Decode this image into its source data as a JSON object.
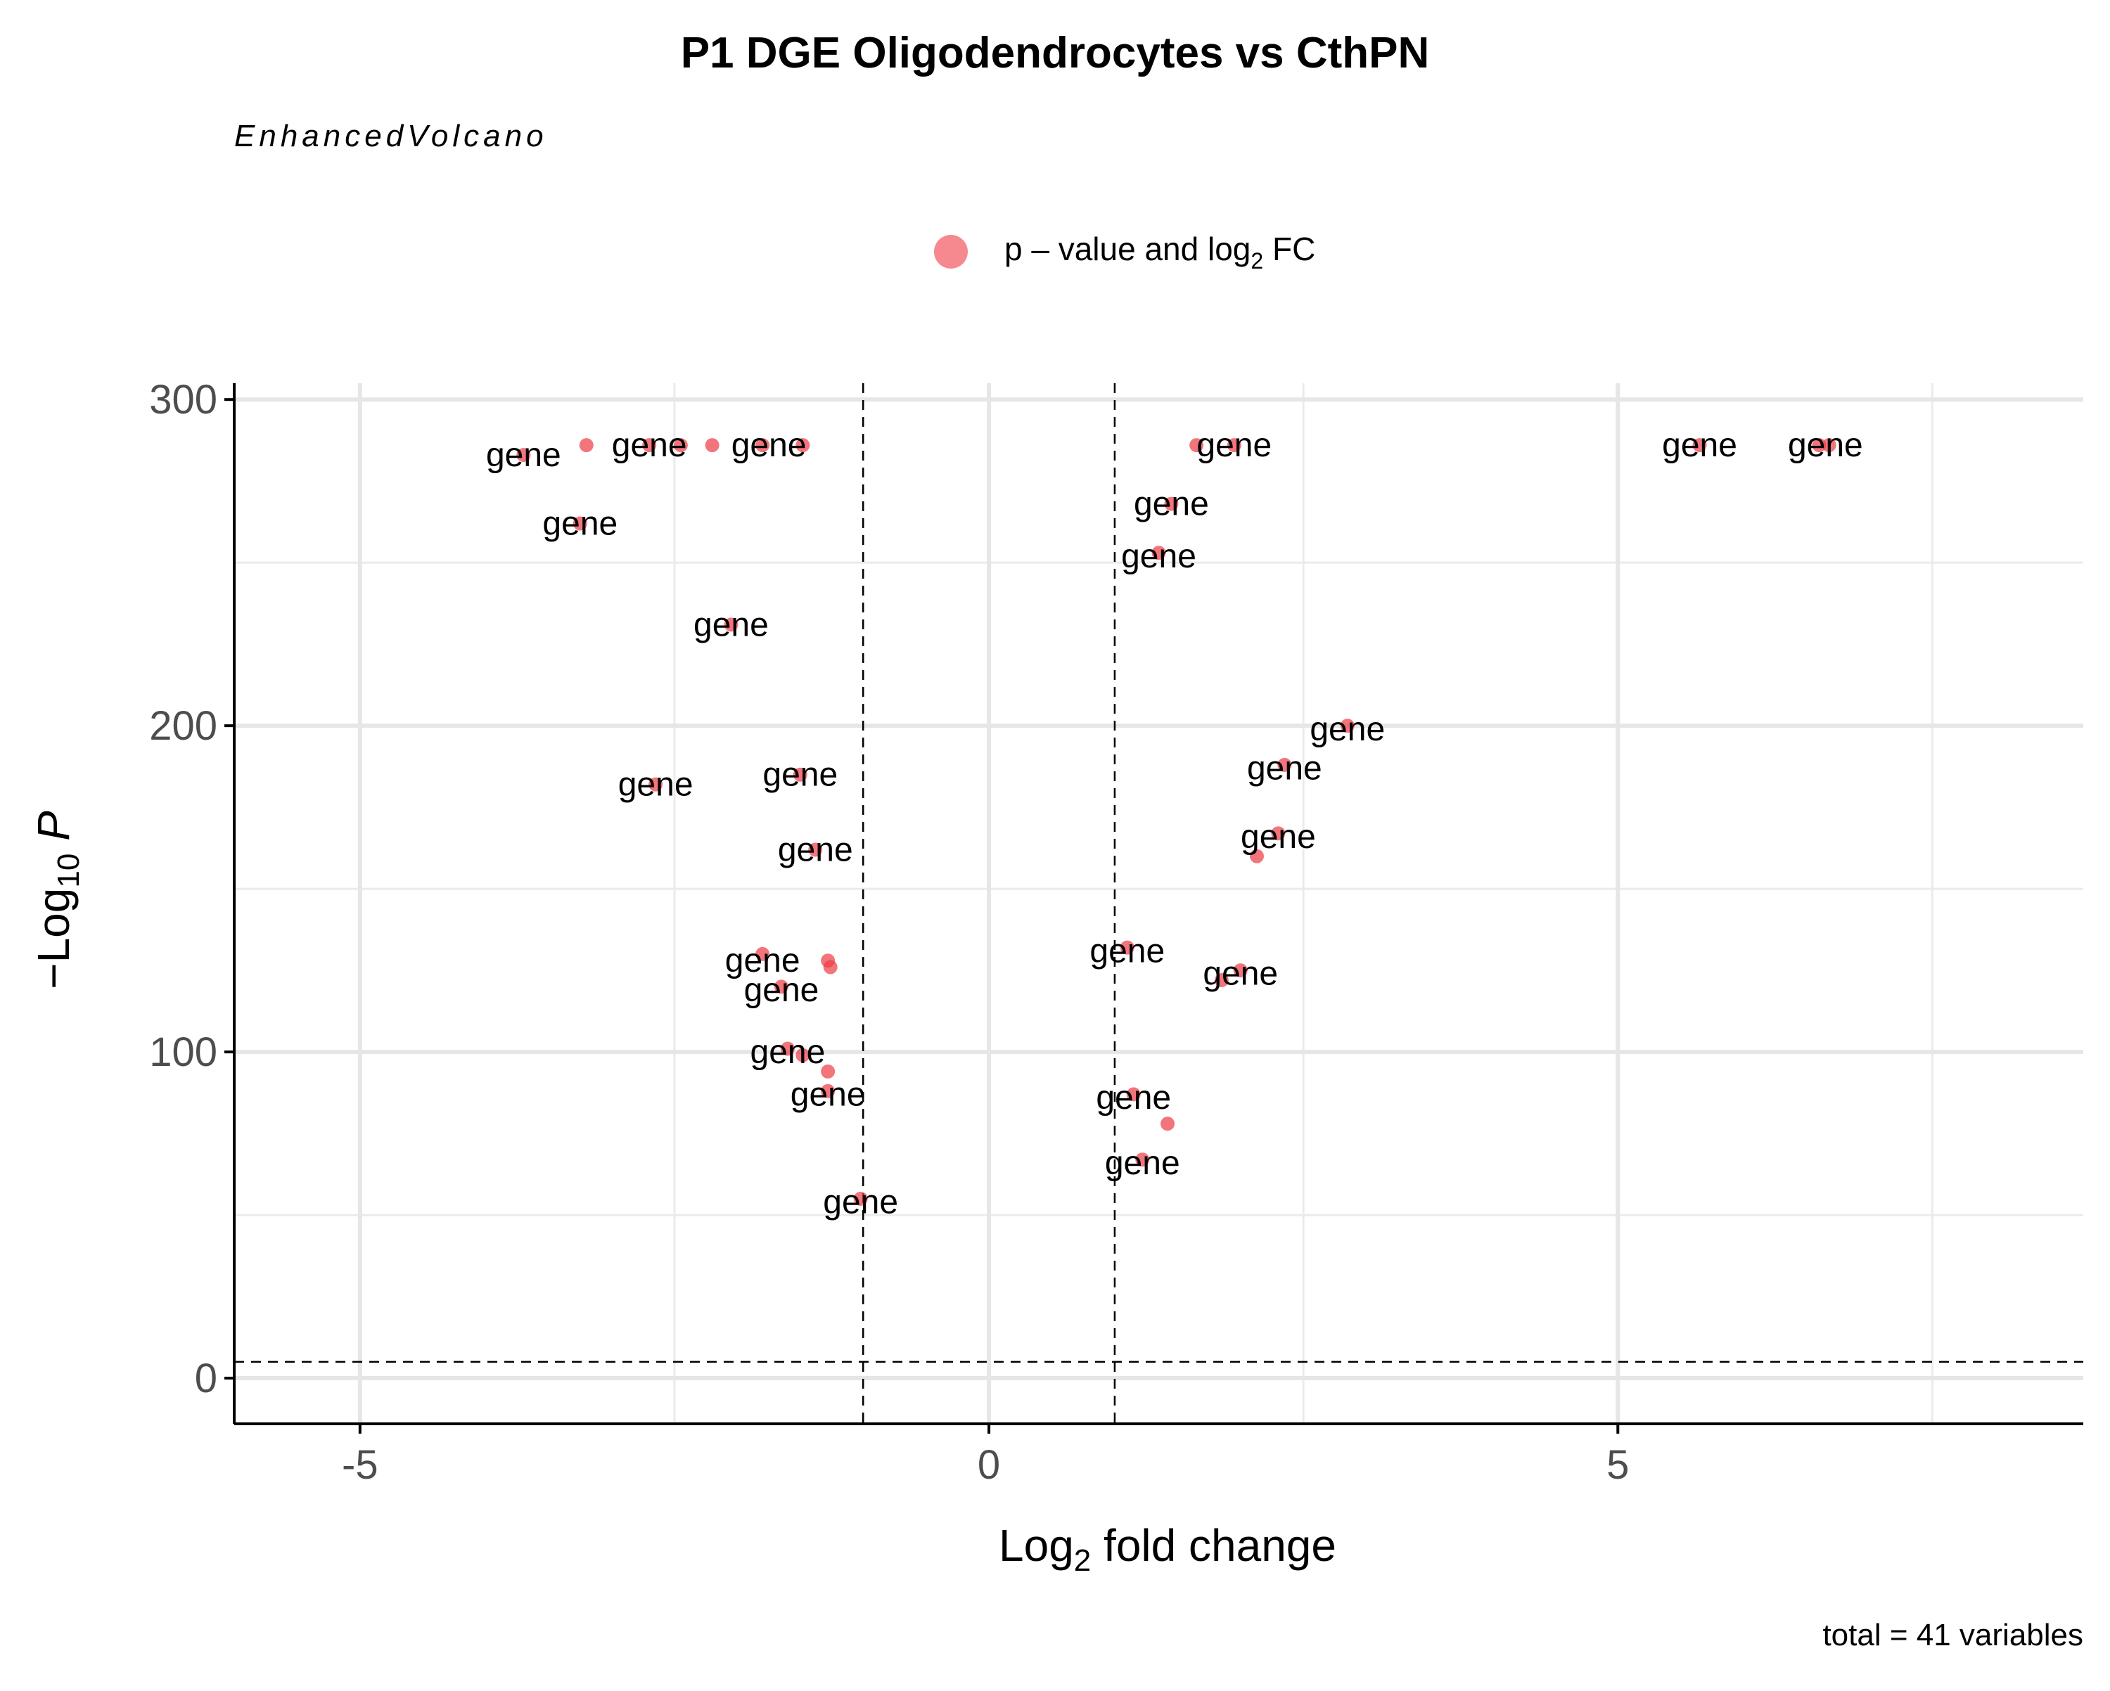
{
  "chart_data": {
    "type": "scatter",
    "title": "P1 DGE Oligodendrocytes vs CthPN",
    "subtitle": "EnhancedVolcano",
    "xlabel": {
      "base": "Log",
      "sub": "2",
      "rest": " fold change"
    },
    "ylabel": {
      "prefix": "−Log",
      "sub": "10",
      "italic": "P"
    },
    "legend": {
      "placement": "top",
      "label_parts": [
        "p – value and log",
        "2",
        " FC"
      ],
      "color": "#ee3b45"
    },
    "caption": "total = 41 variables",
    "xlim": [
      -6.0,
      8.7
    ],
    "ylim": [
      -14,
      305
    ],
    "x_ticks": [
      -5,
      0,
      5
    ],
    "x_tick_labels": [
      "-5",
      "0",
      "5"
    ],
    "y_ticks": [
      0,
      100,
      200,
      300
    ],
    "y_tick_labels": [
      "0",
      "100",
      "200",
      "300"
    ],
    "x_minor": [
      -2.5,
      2.5,
      7.5
    ],
    "y_minor": [
      50,
      150,
      250
    ],
    "fc_cutoff": [
      -1,
      1
    ],
    "p_cutoff": 5,
    "grid": true,
    "point_color": "#ee3b45",
    "points": [
      {
        "x": -3.7,
        "y": 283,
        "label": "gene"
      },
      {
        "x": -3.2,
        "y": 286,
        "label": "gene"
      },
      {
        "x": -2.7,
        "y": 286,
        "label": "gene"
      },
      {
        "x": -2.45,
        "y": 286,
        "label": "gene"
      },
      {
        "x": -2.2,
        "y": 286,
        "label": "gene"
      },
      {
        "x": -1.8,
        "y": 286,
        "label": "gene"
      },
      {
        "x": -1.48,
        "y": 286,
        "label": "gene"
      },
      {
        "x": -3.25,
        "y": 262,
        "label": "gene"
      },
      {
        "x": -2.05,
        "y": 231,
        "label": "gene"
      },
      {
        "x": -2.65,
        "y": 182,
        "label": "gene"
      },
      {
        "x": -1.5,
        "y": 185,
        "label": "gene"
      },
      {
        "x": -1.38,
        "y": 162,
        "label": "gene"
      },
      {
        "x": -1.8,
        "y": 130,
        "label": "gene"
      },
      {
        "x": -1.28,
        "y": 128,
        "label": "gene"
      },
      {
        "x": -1.26,
        "y": 126,
        "label": "gene"
      },
      {
        "x": -1.65,
        "y": 120,
        "label": "gene"
      },
      {
        "x": -1.6,
        "y": 101,
        "label": "gene"
      },
      {
        "x": -1.48,
        "y": 99,
        "label": "gene"
      },
      {
        "x": -1.28,
        "y": 94,
        "label": "gene"
      },
      {
        "x": -1.28,
        "y": 88,
        "label": "gene"
      },
      {
        "x": -1.02,
        "y": 55,
        "label": "gene"
      },
      {
        "x": 1.65,
        "y": 286,
        "label": "gene"
      },
      {
        "x": 1.95,
        "y": 286,
        "label": "gene"
      },
      {
        "x": 1.45,
        "y": 268,
        "label": "gene"
      },
      {
        "x": 1.35,
        "y": 253,
        "label": "gene"
      },
      {
        "x": 2.85,
        "y": 200,
        "label": "gene"
      },
      {
        "x": 2.35,
        "y": 188,
        "label": "gene"
      },
      {
        "x": 2.3,
        "y": 167,
        "label": "gene"
      },
      {
        "x": 2.13,
        "y": 160,
        "label": "gene"
      },
      {
        "x": 1.1,
        "y": 132,
        "label": "gene"
      },
      {
        "x": 2.0,
        "y": 125,
        "label": "gene"
      },
      {
        "x": 1.85,
        "y": 122,
        "label": "gene"
      },
      {
        "x": 1.15,
        "y": 87,
        "label": "gene"
      },
      {
        "x": 1.42,
        "y": 78,
        "label": "gene"
      },
      {
        "x": 1.22,
        "y": 67,
        "label": "gene"
      },
      {
        "x": 5.65,
        "y": 286,
        "label": "gene"
      },
      {
        "x": 6.6,
        "y": 286,
        "label": "gene"
      },
      {
        "x": 6.68,
        "y": 286,
        "label": "gene"
      }
    ],
    "labels": [
      {
        "x": -3.7,
        "y": 283,
        "text": "gene"
      },
      {
        "x": -2.7,
        "y": 286,
        "text": "gene"
      },
      {
        "x": -1.75,
        "y": 286,
        "text": "gene"
      },
      {
        "x": -3.25,
        "y": 262,
        "text": "gene"
      },
      {
        "x": -2.05,
        "y": 231,
        "text": "gene"
      },
      {
        "x": -2.65,
        "y": 182,
        "text": "gene"
      },
      {
        "x": -1.5,
        "y": 185,
        "text": "gene"
      },
      {
        "x": -1.38,
        "y": 162,
        "text": "gene"
      },
      {
        "x": -1.8,
        "y": 128,
        "text": "gene"
      },
      {
        "x": -1.65,
        "y": 119,
        "text": "gene"
      },
      {
        "x": -1.6,
        "y": 100,
        "text": "gene"
      },
      {
        "x": -1.28,
        "y": 87,
        "text": "gene"
      },
      {
        "x": -1.02,
        "y": 54,
        "text": "gene"
      },
      {
        "x": 1.95,
        "y": 286,
        "text": "gene"
      },
      {
        "x": 1.45,
        "y": 268,
        "text": "gene"
      },
      {
        "x": 1.35,
        "y": 252,
        "text": "gene"
      },
      {
        "x": 2.85,
        "y": 199,
        "text": "gene"
      },
      {
        "x": 2.35,
        "y": 187,
        "text": "gene"
      },
      {
        "x": 2.3,
        "y": 166,
        "text": "gene"
      },
      {
        "x": 1.1,
        "y": 131,
        "text": "gene"
      },
      {
        "x": 2.0,
        "y": 124,
        "text": "gene"
      },
      {
        "x": 1.15,
        "y": 86,
        "text": "gene"
      },
      {
        "x": 1.22,
        "y": 66,
        "text": "gene"
      },
      {
        "x": 5.65,
        "y": 286,
        "text": "gene"
      },
      {
        "x": 6.65,
        "y": 286,
        "text": "gene"
      }
    ]
  }
}
